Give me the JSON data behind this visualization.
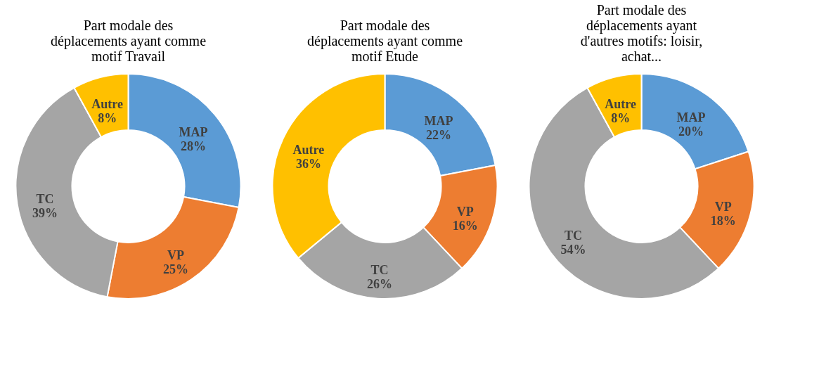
{
  "chart_data": [
    {
      "type": "donut",
      "title": "Part modale des déplacements ayant comme motif Travail",
      "categories": [
        "MAP",
        "VP",
        "TC",
        "Autre"
      ],
      "values": [
        28,
        25,
        39,
        8
      ],
      "value_labels": [
        "28%",
        "25%",
        "39%",
        "8%"
      ],
      "colors": [
        "#5b9bd5",
        "#ed7d31",
        "#a5a5a5",
        "#ffc000"
      ],
      "legend": false
    },
    {
      "type": "donut",
      "title": "Part modale des déplacements ayant comme motif Etude",
      "categories": [
        "MAP",
        "VP",
        "TC",
        "Autre"
      ],
      "values": [
        22,
        16,
        26,
        36
      ],
      "value_labels": [
        "22%",
        "16%",
        "26%",
        "36%"
      ],
      "colors": [
        "#5b9bd5",
        "#ed7d31",
        "#a5a5a5",
        "#ffc000"
      ],
      "legend": false
    },
    {
      "type": "donut",
      "title": "Part modale des déplacements ayant d'autres motifs: loisir, achat...",
      "categories": [
        "MAP",
        "VP",
        "TC",
        "Autre"
      ],
      "values": [
        20,
        18,
        54,
        8
      ],
      "value_labels": [
        "20%",
        "18%",
        "54%",
        "8%"
      ],
      "colors": [
        "#5b9bd5",
        "#ed7d31",
        "#a5a5a5",
        "#ffc000"
      ],
      "legend": false
    }
  ]
}
